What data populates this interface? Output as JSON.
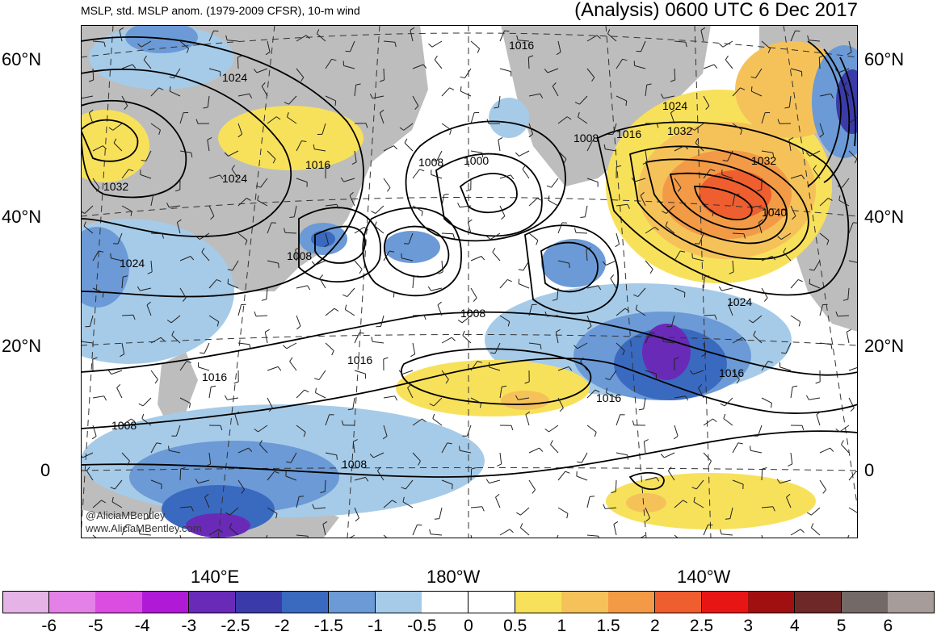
{
  "header": {
    "subtitle": "MSLP, std. MSLP anom. (1979-2009 CFSR), 10-m wind",
    "title": "(Analysis) 0600 UTC 6 Dec 2017"
  },
  "lat_labels": [
    "60°N",
    "40°N",
    "20°N",
    "0"
  ],
  "lon_labels": [
    "140°E",
    "180°W",
    "140°W"
  ],
  "credits": [
    "@AliciaMBentley",
    "www.AliciaMBentley.com"
  ],
  "contour_labels": [
    "1016",
    "1024",
    "1032",
    "1024",
    "1016",
    "1008",
    "1000",
    "1008",
    "1016",
    "1024",
    "1032",
    "1032",
    "1040",
    "1024",
    "1024",
    "1008",
    "1008",
    "1016",
    "1016",
    "1016",
    "1008",
    "1008",
    "1016"
  ],
  "colorbar": {
    "colors": [
      "#e6b3e6",
      "#e580e6",
      "#d94de0",
      "#b01ad6",
      "#6a2ab8",
      "#3a3aa8",
      "#3a6ac0",
      "#6b9ad6",
      "#a6cbe8",
      "#ffffff",
      "#ffffff",
      "#f8e15a",
      "#f5c25a",
      "#f29a45",
      "#ee5e2e",
      "#e81515",
      "#a01010",
      "#6e2828",
      "#736a68",
      "#a69c9a"
    ],
    "tick_labels": [
      "-6",
      "-5",
      "-4",
      "-3",
      "-2.5",
      "-2",
      "-1.5",
      "-1",
      "-0.5",
      "0",
      "0.5",
      "1",
      "1.5",
      "2",
      "2.5",
      "3",
      "4",
      "5",
      "6"
    ]
  },
  "palette": {
    "land": "#bdbdbd",
    "ocean": "#ffffff",
    "contour": "#000000"
  }
}
